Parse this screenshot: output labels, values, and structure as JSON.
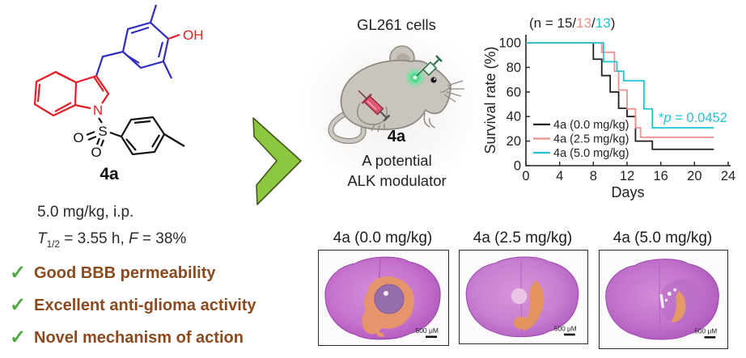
{
  "colors": {
    "accent-green": "#8dc63f",
    "arrow-outline": "#44571b",
    "check-green": "#4faa44",
    "claim-brown": "#8c4a1e",
    "molecule-red": "#e31e26",
    "molecule-blue": "#2e2ec4",
    "curve-black": "#231f20",
    "curve-salmon": "#f0908d",
    "curve-cyan": "#25c3d4"
  },
  "molecule": {
    "label": "4a",
    "atoms": {
      "hydroxyl": "OH",
      "nitrogen": "N",
      "sulfur": "S",
      "oxygen1": "O",
      "oxygen2": "O"
    }
  },
  "pk": {
    "line1": "5.0 mg/kg, i.p.",
    "t_symbol": "T",
    "t_sub": "1/2",
    "t_rest": " = 3.55 h, ",
    "f_symbol": "F",
    "f_rest": " = 38%"
  },
  "checklist": {
    "check_glyph": "✓",
    "items": [
      "Good BBB permeability",
      "Excellent anti-glioma activity",
      "Novel mechanism of action"
    ]
  },
  "mouse_panel": {
    "cells_label": "GL261 cells",
    "compound_label": "4a",
    "caption_line1": "A potential",
    "caption_line2": "ALK modulator"
  },
  "chart_data": {
    "type": "line",
    "subtype": "kaplan-meier-step-survival",
    "xlabel": "Days",
    "ylabel": "Survival rate (%)",
    "xlim": [
      0,
      24
    ],
    "ylim": [
      0,
      100
    ],
    "xticks": [
      0,
      4,
      8,
      12,
      16,
      20,
      24
    ],
    "yticks": [
      0,
      20,
      40,
      60,
      80,
      100
    ],
    "grid": false,
    "legend_position": "lower-left",
    "end_day": 22.3,
    "n_annotation_parts": [
      {
        "text": "(n = 15/",
        "color": "#231f20"
      },
      {
        "text": "13",
        "color": "#f0908d"
      },
      {
        "text": "/",
        "color": "#231f20"
      },
      {
        "text": "13",
        "color": "#25c3d4"
      },
      {
        "text": ")",
        "color": "#231f20"
      }
    ],
    "p_annotation": {
      "color": "#25c3d4",
      "parts": [
        {
          "text": "*",
          "italic": false
        },
        {
          "text": "p",
          "italic": true
        },
        {
          "text": " = 0.0452",
          "italic": false
        }
      ]
    },
    "series": [
      {
        "name": "4a (0.0 mg/kg)",
        "color": "#231f20",
        "n": 15,
        "steps": [
          [
            8,
            86.7
          ],
          [
            9,
            73.3
          ],
          [
            10,
            60
          ],
          [
            11,
            46.7
          ],
          [
            12,
            40
          ],
          [
            13,
            20
          ],
          [
            15,
            13.3
          ]
        ]
      },
      {
        "name": "4a (2.5 mg/kg)",
        "color": "#f0908d",
        "n": 13,
        "steps": [
          [
            9,
            92.3
          ],
          [
            10.5,
            76.9
          ],
          [
            11,
            61.5
          ],
          [
            12,
            46.2
          ],
          [
            13,
            30.8
          ],
          [
            13.6,
            23.1
          ]
        ]
      },
      {
        "name": "4a (5.0 mg/kg)",
        "color": "#25c3d4",
        "n": 13,
        "steps": [
          [
            9.2,
            84.6
          ],
          [
            10.8,
            76.9
          ],
          [
            11.6,
            69.2
          ],
          [
            14,
            46.2
          ],
          [
            15,
            30.8
          ]
        ]
      }
    ]
  },
  "histology": {
    "panels": [
      {
        "label": "4a (0.0 mg/kg)",
        "scale_bar": "500 μM",
        "tumor_extent": "large"
      },
      {
        "label": "4a (2.5 mg/kg)",
        "scale_bar": "500 μM",
        "tumor_extent": "medium"
      },
      {
        "label": "4a (5.0 mg/kg)",
        "scale_bar": "500 μM",
        "tumor_extent": "small"
      }
    ]
  }
}
